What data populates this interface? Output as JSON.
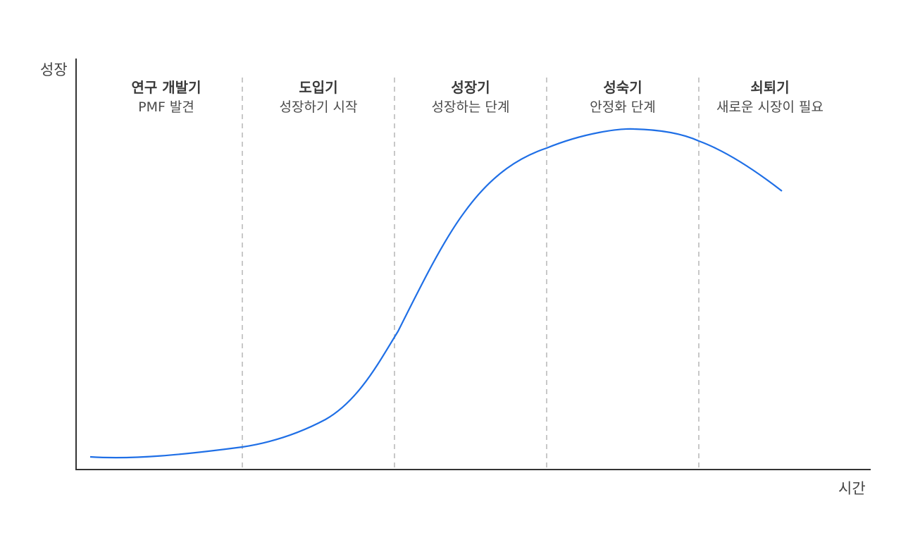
{
  "y_axis_label": "성장",
  "x_axis_label": "시간",
  "curve_color": "#1f6fe6",
  "divider_color": "#c8c8c8",
  "axis_color": "#333333",
  "stages": [
    {
      "name": "연구 개발기",
      "description": "PMF 발견"
    },
    {
      "name": "도입기",
      "description": "성장하기 시작"
    },
    {
      "name": "성장기",
      "description": "성장하는 단계"
    },
    {
      "name": "성숙기",
      "description": "안정화 단계"
    },
    {
      "name": "쇠퇴기",
      "description": "새로운 시장이 필요"
    }
  ]
}
